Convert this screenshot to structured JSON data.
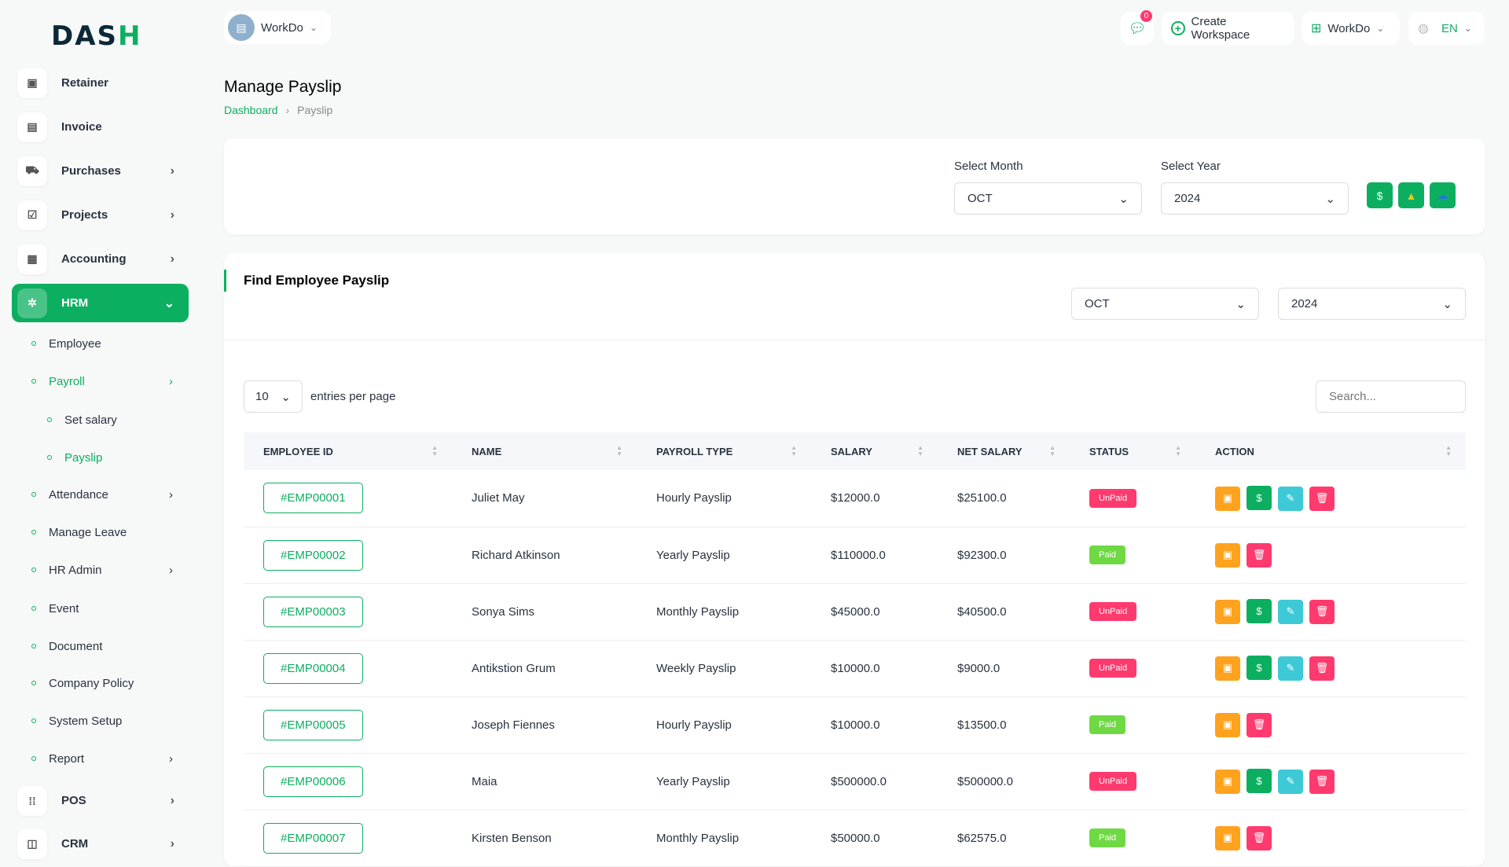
{
  "brand": {
    "logo": "DASH"
  },
  "header": {
    "workspace": "WorkDo",
    "notifications": "0",
    "create_workspace": "Create Workspace",
    "workspace_menu": "WorkDo",
    "language": "EN"
  },
  "sidebar": {
    "items": [
      {
        "label": "Retainer",
        "icon": "save-icon"
      },
      {
        "label": "Invoice",
        "icon": "file-icon"
      },
      {
        "label": "Purchases",
        "icon": "cart-icon"
      },
      {
        "label": "Projects",
        "icon": "check-square-icon"
      },
      {
        "label": "Accounting",
        "icon": "grid-icon"
      },
      {
        "label": "HRM",
        "icon": "hrm-icon"
      }
    ],
    "hrm_items": [
      "Employee",
      "Payroll",
      "Set salary",
      "Payslip",
      "Attendance",
      "Manage Leave",
      "HR Admin",
      "Event",
      "Document",
      "Company Policy",
      "System Setup",
      "Report"
    ],
    "bottom": [
      {
        "label": "POS"
      },
      {
        "label": "CRM"
      }
    ]
  },
  "page": {
    "title": "Manage Payslip",
    "breadcrumb": [
      "Dashboard",
      "Payslip"
    ]
  },
  "filter": {
    "month_label": "Select Month",
    "month": "OCT",
    "year_label": "Select Year",
    "year": "2024"
  },
  "find": {
    "title": "Find Employee Payslip",
    "month": "OCT",
    "year": "2024"
  },
  "table_controls": {
    "per_page": "10",
    "per_page_label": "entries per page",
    "search_placeholder": "Search..."
  },
  "columns": [
    "EMPLOYEE ID",
    "NAME",
    "PAYROLL TYPE",
    "SALARY",
    "NET SALARY",
    "STATUS",
    "ACTION"
  ],
  "rows": [
    {
      "id": "#EMP00001",
      "name": "Juliet May",
      "type": "Hourly Payslip",
      "salary": "$12000.0",
      "net": "$25100.0",
      "status": "UnPaid"
    },
    {
      "id": "#EMP00002",
      "name": "Richard Atkinson",
      "type": "Yearly Payslip",
      "salary": "$110000.0",
      "net": "$92300.0",
      "status": "Paid"
    },
    {
      "id": "#EMP00003",
      "name": "Sonya Sims",
      "type": "Monthly Payslip",
      "salary": "$45000.0",
      "net": "$40500.0",
      "status": "UnPaid"
    },
    {
      "id": "#EMP00004",
      "name": "Antikstion Grum",
      "type": "Weekly Payslip",
      "salary": "$10000.0",
      "net": "$9000.0",
      "status": "UnPaid"
    },
    {
      "id": "#EMP00005",
      "name": "Joseph Fiennes",
      "type": "Hourly Payslip",
      "salary": "$10000.0",
      "net": "$13500.0",
      "status": "Paid"
    },
    {
      "id": "#EMP00006",
      "name": "Maia",
      "type": "Yearly Payslip",
      "salary": "$500000.0",
      "net": "$500000.0",
      "status": "UnPaid"
    },
    {
      "id": "#EMP00007",
      "name": "Kirsten Benson",
      "type": "Monthly Payslip",
      "salary": "$50000.0",
      "net": "$62575.0",
      "status": "Paid"
    }
  ],
  "colors": {
    "accent": "#0caf60",
    "unpaid": "#ff3a6e",
    "paid": "#6fd943",
    "warning": "#ffa21d",
    "info": "#3ec9d6"
  }
}
